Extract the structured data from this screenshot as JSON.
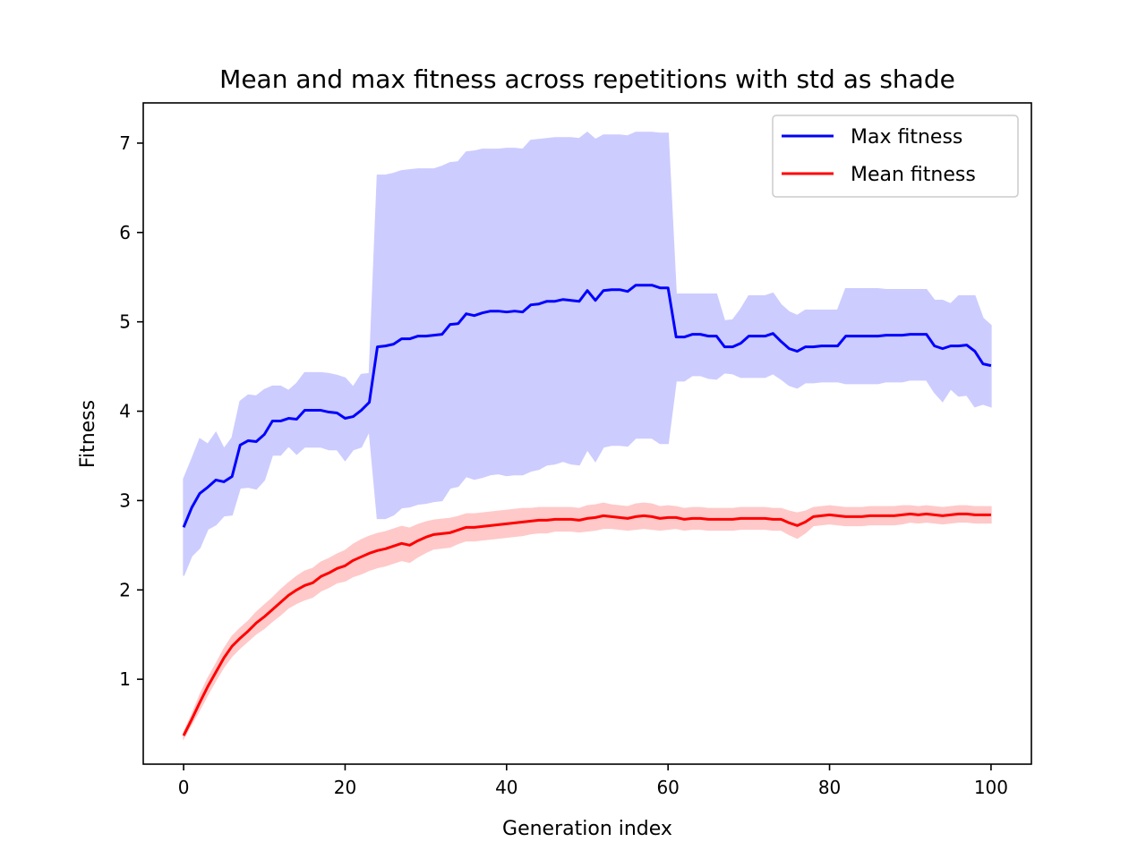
{
  "chart_data": {
    "type": "line",
    "title": "Mean and max fitness across repetitions with std as shade",
    "xlabel": "Generation index",
    "ylabel": "Fitness",
    "xlim": [
      -5,
      105
    ],
    "ylim": [
      0.05,
      7.45
    ],
    "xticks": [
      0,
      20,
      40,
      60,
      80,
      100
    ],
    "yticks": [
      1,
      2,
      3,
      4,
      5,
      6,
      7
    ],
    "grid": false,
    "legend": {
      "position": "top-right",
      "entries": [
        "Max fitness",
        "Mean fitness"
      ]
    },
    "x": [
      0,
      1,
      2,
      3,
      4,
      5,
      6,
      7,
      8,
      9,
      10,
      11,
      12,
      13,
      14,
      15,
      16,
      17,
      18,
      19,
      20,
      21,
      22,
      23,
      24,
      25,
      26,
      27,
      28,
      29,
      30,
      31,
      32,
      33,
      34,
      35,
      36,
      37,
      38,
      39,
      40,
      41,
      42,
      43,
      44,
      45,
      46,
      47,
      48,
      49,
      50,
      51,
      52,
      53,
      54,
      55,
      56,
      57,
      58,
      59,
      60,
      61,
      62,
      63,
      64,
      65,
      66,
      67,
      68,
      69,
      70,
      71,
      72,
      73,
      74,
      75,
      76,
      77,
      78,
      79,
      80,
      81,
      82,
      83,
      84,
      85,
      86,
      87,
      88,
      89,
      90,
      91,
      92,
      93,
      94,
      95,
      96,
      97,
      98,
      99,
      100
    ],
    "series": [
      {
        "name": "Max fitness",
        "color": "#0000ff",
        "shade": "#ccccff",
        "values": [
          2.7,
          2.92,
          3.08,
          3.15,
          3.23,
          3.21,
          3.27,
          3.62,
          3.67,
          3.66,
          3.74,
          3.89,
          3.89,
          3.92,
          3.91,
          4.01,
          4.01,
          4.01,
          3.99,
          3.98,
          3.92,
          3.94,
          4.01,
          4.1,
          4.72,
          4.73,
          4.75,
          4.81,
          4.81,
          4.84,
          4.84,
          4.85,
          4.86,
          4.97,
          4.98,
          5.09,
          5.07,
          5.1,
          5.12,
          5.12,
          5.11,
          5.12,
          5.11,
          5.19,
          5.2,
          5.23,
          5.23,
          5.25,
          5.24,
          5.23,
          5.35,
          5.24,
          5.35,
          5.36,
          5.36,
          5.34,
          5.41,
          5.41,
          5.41,
          5.38,
          5.38,
          4.83,
          4.83,
          4.86,
          4.86,
          4.84,
          4.84,
          4.72,
          4.72,
          4.76,
          4.84,
          4.84,
          4.84,
          4.87,
          4.78,
          4.7,
          4.67,
          4.72,
          4.72,
          4.73,
          4.73,
          4.73,
          4.84,
          4.84,
          4.84,
          4.84,
          4.84,
          4.85,
          4.85,
          4.85,
          4.86,
          4.86,
          4.86,
          4.73,
          4.7,
          4.73,
          4.73,
          4.74,
          4.67,
          4.53,
          4.51
        ],
        "std_upper": [
          3.24,
          3.46,
          3.69,
          3.63,
          3.76,
          3.58,
          3.7,
          4.11,
          4.18,
          4.17,
          4.24,
          4.28,
          4.28,
          4.23,
          4.31,
          4.43,
          4.43,
          4.43,
          4.42,
          4.4,
          4.37,
          4.27,
          4.41,
          4.42,
          6.64,
          6.64,
          6.66,
          6.69,
          6.7,
          6.71,
          6.71,
          6.71,
          6.74,
          6.78,
          6.79,
          6.9,
          6.91,
          6.93,
          6.93,
          6.93,
          6.94,
          6.94,
          6.93,
          7.03,
          7.04,
          7.05,
          7.06,
          7.06,
          7.06,
          7.05,
          7.12,
          7.04,
          7.09,
          7.09,
          7.09,
          7.08,
          7.12,
          7.12,
          7.12,
          7.11,
          7.11,
          5.31,
          5.31,
          5.31,
          5.31,
          5.31,
          5.31,
          5.01,
          5.02,
          5.14,
          5.29,
          5.29,
          5.29,
          5.32,
          5.19,
          5.11,
          5.07,
          5.13,
          5.13,
          5.13,
          5.13,
          5.13,
          5.37,
          5.37,
          5.37,
          5.37,
          5.37,
          5.36,
          5.36,
          5.36,
          5.36,
          5.36,
          5.36,
          5.24,
          5.24,
          5.2,
          5.29,
          5.29,
          5.29,
          5.04,
          4.96
        ],
        "std_lower": [
          2.16,
          2.38,
          2.47,
          2.68,
          2.73,
          2.83,
          2.84,
          3.14,
          3.15,
          3.13,
          3.23,
          3.51,
          3.51,
          3.61,
          3.52,
          3.6,
          3.6,
          3.6,
          3.57,
          3.57,
          3.45,
          3.57,
          3.6,
          3.78,
          2.8,
          2.8,
          2.84,
          2.92,
          2.93,
          2.96,
          2.97,
          2.99,
          3.0,
          3.14,
          3.16,
          3.27,
          3.24,
          3.26,
          3.29,
          3.3,
          3.28,
          3.29,
          3.29,
          3.33,
          3.35,
          3.4,
          3.41,
          3.44,
          3.41,
          3.4,
          3.57,
          3.44,
          3.6,
          3.62,
          3.62,
          3.61,
          3.7,
          3.7,
          3.7,
          3.64,
          3.64,
          4.34,
          4.34,
          4.4,
          4.4,
          4.37,
          4.36,
          4.43,
          4.42,
          4.38,
          4.38,
          4.38,
          4.38,
          4.42,
          4.36,
          4.29,
          4.26,
          4.32,
          4.32,
          4.33,
          4.33,
          4.33,
          4.31,
          4.31,
          4.31,
          4.31,
          4.31,
          4.33,
          4.33,
          4.33,
          4.35,
          4.35,
          4.35,
          4.21,
          4.11,
          4.25,
          4.17,
          4.18,
          4.05,
          4.08,
          4.05
        ]
      },
      {
        "name": "Mean fitness",
        "color": "#ff0000",
        "shade": "#ffc9c9",
        "values": [
          0.37,
          0.55,
          0.74,
          0.92,
          1.08,
          1.24,
          1.37,
          1.46,
          1.54,
          1.63,
          1.7,
          1.78,
          1.86,
          1.94,
          2.0,
          2.05,
          2.08,
          2.15,
          2.19,
          2.24,
          2.27,
          2.33,
          2.37,
          2.41,
          2.44,
          2.46,
          2.49,
          2.52,
          2.5,
          2.55,
          2.59,
          2.62,
          2.63,
          2.64,
          2.67,
          2.7,
          2.7,
          2.71,
          2.72,
          2.73,
          2.74,
          2.75,
          2.76,
          2.77,
          2.78,
          2.78,
          2.79,
          2.79,
          2.79,
          2.78,
          2.8,
          2.81,
          2.83,
          2.82,
          2.81,
          2.8,
          2.82,
          2.83,
          2.82,
          2.8,
          2.81,
          2.81,
          2.79,
          2.8,
          2.8,
          2.79,
          2.79,
          2.79,
          2.79,
          2.8,
          2.8,
          2.8,
          2.8,
          2.79,
          2.79,
          2.75,
          2.72,
          2.76,
          2.82,
          2.83,
          2.84,
          2.83,
          2.82,
          2.82,
          2.82,
          2.83,
          2.83,
          2.83,
          2.83,
          2.84,
          2.85,
          2.84,
          2.85,
          2.84,
          2.83,
          2.84,
          2.85,
          2.85,
          2.84,
          2.84,
          2.84
        ],
        "std_upper": [
          0.4,
          0.6,
          0.82,
          1.01,
          1.17,
          1.34,
          1.48,
          1.57,
          1.65,
          1.75,
          1.83,
          1.91,
          2.0,
          2.08,
          2.15,
          2.21,
          2.24,
          2.31,
          2.35,
          2.4,
          2.44,
          2.51,
          2.56,
          2.6,
          2.63,
          2.65,
          2.68,
          2.71,
          2.69,
          2.73,
          2.76,
          2.78,
          2.79,
          2.8,
          2.82,
          2.85,
          2.85,
          2.86,
          2.87,
          2.88,
          2.89,
          2.9,
          2.91,
          2.91,
          2.92,
          2.92,
          2.92,
          2.92,
          2.92,
          2.91,
          2.94,
          2.95,
          2.97,
          2.95,
          2.94,
          2.93,
          2.96,
          2.97,
          2.96,
          2.93,
          2.94,
          2.93,
          2.91,
          2.92,
          2.92,
          2.91,
          2.91,
          2.91,
          2.91,
          2.92,
          2.92,
          2.92,
          2.92,
          2.91,
          2.91,
          2.88,
          2.86,
          2.88,
          2.92,
          2.93,
          2.94,
          2.93,
          2.92,
          2.92,
          2.92,
          2.93,
          2.93,
          2.93,
          2.93,
          2.94,
          2.94,
          2.93,
          2.94,
          2.93,
          2.92,
          2.93,
          2.94,
          2.94,
          2.93,
          2.93,
          2.93
        ],
        "std_lower": [
          0.34,
          0.5,
          0.66,
          0.83,
          0.99,
          1.14,
          1.26,
          1.35,
          1.43,
          1.51,
          1.57,
          1.65,
          1.72,
          1.8,
          1.85,
          1.89,
          1.92,
          1.99,
          2.03,
          2.08,
          2.1,
          2.15,
          2.18,
          2.22,
          2.25,
          2.27,
          2.3,
          2.33,
          2.31,
          2.37,
          2.42,
          2.46,
          2.47,
          2.48,
          2.52,
          2.55,
          2.55,
          2.56,
          2.57,
          2.58,
          2.59,
          2.6,
          2.61,
          2.63,
          2.64,
          2.64,
          2.66,
          2.66,
          2.66,
          2.65,
          2.66,
          2.67,
          2.69,
          2.69,
          2.68,
          2.67,
          2.68,
          2.69,
          2.68,
          2.67,
          2.68,
          2.69,
          2.67,
          2.68,
          2.68,
          2.67,
          2.67,
          2.67,
          2.67,
          2.68,
          2.68,
          2.68,
          2.68,
          2.67,
          2.67,
          2.62,
          2.58,
          2.64,
          2.72,
          2.73,
          2.74,
          2.73,
          2.72,
          2.72,
          2.72,
          2.73,
          2.73,
          2.73,
          2.73,
          2.74,
          2.76,
          2.75,
          2.76,
          2.75,
          2.74,
          2.75,
          2.76,
          2.76,
          2.75,
          2.75,
          2.75
        ]
      }
    ]
  }
}
